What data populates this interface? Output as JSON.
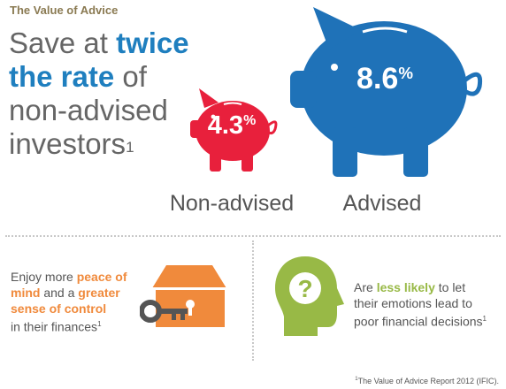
{
  "header": {
    "kicker": "The Value of Advice"
  },
  "headline": {
    "line1_plain": "Save at ",
    "line1_em": "twice",
    "line2_em": "the rate",
    "line2_plain": " of",
    "line3": "non-advised",
    "line4": "investors",
    "footnote_mark": "1"
  },
  "comparison": {
    "non_advised": {
      "value": "4.3",
      "unit": "%",
      "label": "Non-advised",
      "color": "#e8203c"
    },
    "advised": {
      "value": "8.6",
      "unit": "%",
      "label": "Advised",
      "color": "#1f72b8"
    }
  },
  "benefits": {
    "left": {
      "icon": "house-with-key-icon",
      "t1": "Enjoy more ",
      "h1": "peace of",
      "h2": "mind",
      "t2": " and a ",
      "h3": "greater",
      "h4": "sense of control",
      "t3": "in their finances",
      "mark": "1"
    },
    "right": {
      "icon": "head-question-mark-icon",
      "t1": "Are ",
      "h1": "less likely",
      "t2": " to let",
      "t3": "their emotions lead to",
      "t4": "poor financial decisions",
      "mark": "1"
    }
  },
  "footnote": {
    "mark": "1",
    "text": "The Value of Advice Report 2012 (IFIC)."
  },
  "colors": {
    "kicker": "#8a7a52",
    "accent_blue": "#1f7fbf",
    "accent_orange": "#f08a3c",
    "accent_green": "#98b946"
  }
}
